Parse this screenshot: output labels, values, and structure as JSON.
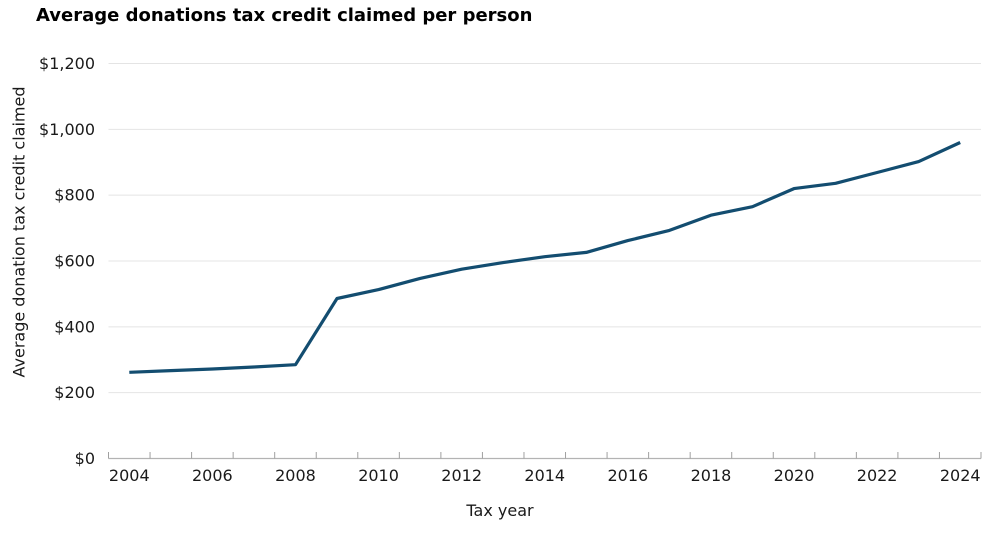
{
  "page": {
    "background": "#ffffff"
  },
  "chart_data": {
    "type": "line",
    "title": "Average donations tax credit claimed per person",
    "xlabel": "Tax year",
    "ylabel": "Average donation tax credit claimed",
    "x": [
      2004,
      2005,
      2006,
      2007,
      2008,
      2009,
      2010,
      2011,
      2012,
      2013,
      2014,
      2015,
      2016,
      2017,
      2018,
      2019,
      2020,
      2021,
      2022,
      2023,
      2024
    ],
    "values": [
      262,
      267,
      272,
      278,
      285,
      486,
      513,
      547,
      575,
      595,
      613,
      626,
      662,
      693,
      739,
      765,
      820,
      836,
      869,
      902,
      960
    ],
    "series_name": "Average donation tax credit claimed per person",
    "ylim": [
      0,
      1200
    ],
    "grid": true,
    "legend_position": "none",
    "yticks": [
      {
        "value": 0,
        "label": "$0"
      },
      {
        "value": 200,
        "label": "$200"
      },
      {
        "value": 400,
        "label": "$400"
      },
      {
        "value": 600,
        "label": "$600"
      },
      {
        "value": 800,
        "label": "$800"
      },
      {
        "value": 1000,
        "label": "$1,000"
      },
      {
        "value": 1200,
        "label": "$1,200"
      }
    ],
    "xticks": [
      {
        "value": 2004,
        "label": "2004"
      },
      {
        "value": 2006,
        "label": "2006"
      },
      {
        "value": 2008,
        "label": "2008"
      },
      {
        "value": 2010,
        "label": "2010"
      },
      {
        "value": 2012,
        "label": "2012"
      },
      {
        "value": 2014,
        "label": "2014"
      },
      {
        "value": 2016,
        "label": "2016"
      },
      {
        "value": 2018,
        "label": "2018"
      },
      {
        "value": 2020,
        "label": "2020"
      },
      {
        "value": 2022,
        "label": "2022"
      },
      {
        "value": 2024,
        "label": "2024"
      }
    ],
    "colors": {
      "line": "#134D70",
      "grid": "#e4e4e4",
      "axis": "#b3b3b3",
      "tick_mark": "#a0a0a0",
      "tick_text": "#1a1a1a",
      "title_text": "#000000"
    }
  }
}
